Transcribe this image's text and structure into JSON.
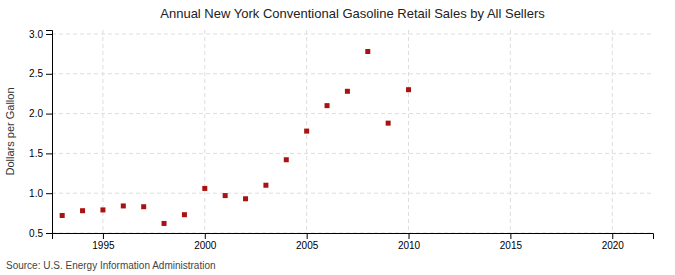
{
  "chart_data": {
    "type": "scatter",
    "title": "Annual New York Conventional Gasoline Retail Sales by All Sellers",
    "ylabel": "Dollars per Gallon",
    "annotation": "Source: U.S. Energy Information Administration",
    "color": "#aa1111",
    "marker": "square",
    "grid": true,
    "x": [
      1993,
      1994,
      1995,
      1996,
      1997,
      1998,
      1999,
      2000,
      2001,
      2002,
      2003,
      2004,
      2005,
      2006,
      2007,
      2008,
      2009,
      2010
    ],
    "values": [
      0.72,
      0.78,
      0.79,
      0.84,
      0.83,
      0.62,
      0.73,
      1.06,
      0.97,
      0.93,
      1.1,
      1.42,
      1.78,
      2.1,
      2.28,
      2.78,
      1.88,
      2.3
    ],
    "xlim": [
      1992.5,
      2022
    ],
    "ylim": [
      0.5,
      3.05
    ],
    "xticks": [
      1995,
      2000,
      2005,
      2010,
      2015,
      2020
    ],
    "yticks": [
      0.5,
      {
        "value": 1.0,
        "label": "1.0"
      },
      1.5,
      {
        "value": 2.0,
        "label": "2.0"
      },
      2.5,
      {
        "value": 3.0,
        "label": "3.0"
      }
    ]
  }
}
